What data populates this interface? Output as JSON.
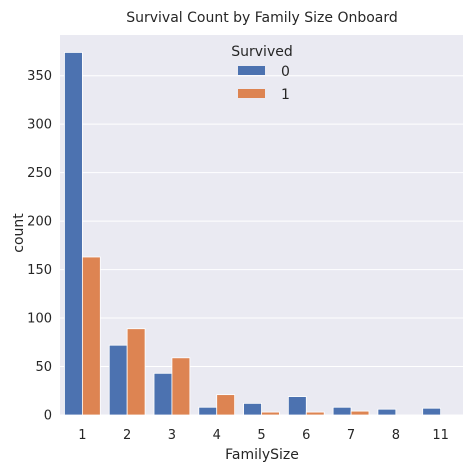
{
  "chart_data": {
    "type": "bar",
    "title": "Survival Count by Family Size Onboard",
    "xlabel": "FamilySize",
    "ylabel": "count",
    "categories": [
      "1",
      "2",
      "3",
      "4",
      "5",
      "6",
      "7",
      "8",
      "11"
    ],
    "series": [
      {
        "name": "0",
        "values": [
          374,
          72,
          43,
          8,
          12,
          19,
          8,
          6,
          7
        ]
      },
      {
        "name": "1",
        "values": [
          163,
          89,
          59,
          21,
          3,
          3,
          4,
          0,
          0
        ]
      }
    ],
    "ylim": [
      0,
      392
    ],
    "yticks": [
      0,
      50,
      100,
      150,
      200,
      250,
      300,
      350
    ],
    "grid": true,
    "legend": {
      "title": "Survived",
      "placement": "top-center"
    },
    "colors": {
      "0": "#4c72b0",
      "1": "#dd8452",
      "background": "#eaeaf2",
      "grid": "#ffffff"
    }
  }
}
